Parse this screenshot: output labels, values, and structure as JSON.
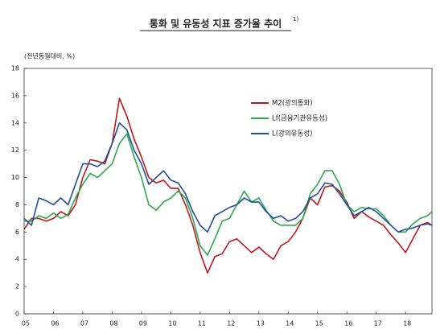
{
  "chart_data": {
    "type": "line",
    "title": "통화 및 유동성 지표 증가율 추이",
    "title_note": "1)",
    "y_label": "(전년동월대비, %)",
    "x": [
      5,
      5.25,
      5.5,
      5.75,
      6,
      6.25,
      6.5,
      6.75,
      7,
      7.25,
      7.5,
      7.75,
      8,
      8.25,
      8.5,
      8.75,
      9,
      9.25,
      9.5,
      9.75,
      10,
      10.25,
      10.5,
      10.75,
      11,
      11.25,
      11.5,
      11.75,
      12,
      12.25,
      12.5,
      12.75,
      13,
      13.25,
      13.5,
      13.75,
      14,
      14.25,
      14.5,
      14.75,
      15,
      15.25,
      15.5,
      15.75,
      16,
      16.25,
      16.5,
      16.75,
      17,
      17.25,
      17.5,
      17.75,
      18,
      18.25,
      18.5,
      18.75,
      18.9
    ],
    "series": [
      {
        "name": "M2(광의통화)",
        "color": "#c0161b",
        "values": [
          6.2,
          7.0,
          7.0,
          6.8,
          7.0,
          7.5,
          7.2,
          8.0,
          10.0,
          11.3,
          11.2,
          11.0,
          12.5,
          15.8,
          14.5,
          12.8,
          11.5,
          10.0,
          9.6,
          9.8,
          9.2,
          9.2,
          8.0,
          6.5,
          4.5,
          3.0,
          4.2,
          4.4,
          5.3,
          5.5,
          5.0,
          4.5,
          4.9,
          4.4,
          4.0,
          5.0,
          5.3,
          6.0,
          7.0,
          8.5,
          8.0,
          9.3,
          9.4,
          9.0,
          8.2,
          7.0,
          7.5,
          7.1,
          6.8,
          6.5,
          5.8,
          5.2,
          4.5,
          5.5,
          6.5,
          6.7,
          6.5
        ]
      },
      {
        "name": "Lf(금융기관유동성)",
        "color": "#2aaa4a",
        "values": [
          6.8,
          6.8,
          7.2,
          7.0,
          7.4,
          7.0,
          7.3,
          8.5,
          9.5,
          10.3,
          10.0,
          10.5,
          11.0,
          12.5,
          13.2,
          11.5,
          10.0,
          8.0,
          7.6,
          8.2,
          8.5,
          9.0,
          8.5,
          7.0,
          5.0,
          4.3,
          5.5,
          6.8,
          7.0,
          8.0,
          9.0,
          8.2,
          8.5,
          7.6,
          6.8,
          6.5,
          6.5,
          6.5,
          7.0,
          8.8,
          9.5,
          10.5,
          10.5,
          9.5,
          8.0,
          7.5,
          7.8,
          7.7,
          7.7,
          7.2,
          6.5,
          6.0,
          6.0,
          6.6,
          7.0,
          7.2,
          7.5
        ]
      },
      {
        "name": "L(광의유동성)",
        "color": "#1f4e9c",
        "values": [
          7.0,
          6.5,
          8.5,
          8.3,
          8.0,
          8.5,
          8.0,
          9.5,
          11.0,
          11.0,
          10.8,
          11.2,
          12.5,
          14.0,
          13.5,
          12.0,
          11.0,
          9.5,
          10.0,
          10.5,
          9.8,
          9.6,
          8.8,
          7.5,
          6.5,
          6.0,
          7.2,
          7.5,
          7.8,
          8.0,
          8.5,
          8.2,
          8.2,
          7.5,
          7.0,
          7.2,
          6.8,
          7.0,
          7.5,
          8.5,
          8.8,
          9.6,
          9.5,
          8.8,
          8.0,
          7.2,
          7.5,
          7.8,
          7.5,
          7.0,
          6.5,
          6.0,
          6.2,
          6.3,
          6.5,
          6.6,
          6.5
        ]
      }
    ],
    "xlim": [
      5,
      18.9
    ],
    "xticks": [
      {
        "value": 5,
        "label": "05"
      },
      {
        "value": 6,
        "label": "06"
      },
      {
        "value": 7,
        "label": "07"
      },
      {
        "value": 8,
        "label": "08"
      },
      {
        "value": 9,
        "label": "09"
      },
      10,
      11,
      12,
      13,
      14,
      15,
      16,
      17,
      18
    ],
    "ylim": [
      0,
      18
    ],
    "yticks": [
      0,
      2,
      4,
      6,
      8,
      10,
      12,
      14,
      16,
      18
    ],
    "legend": "upper right"
  }
}
